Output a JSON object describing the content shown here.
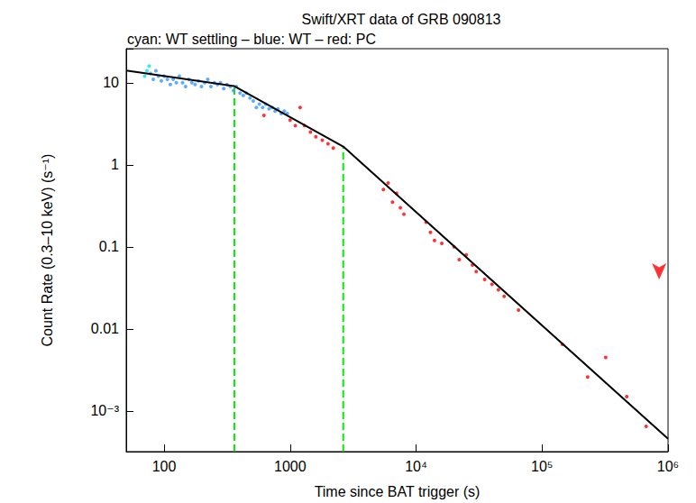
{
  "chart_data": {
    "type": "scatter",
    "title": "Swift/XRT data of GRB 090813",
    "subtitle": "cyan: WT settling – blue: WT – red: PC",
    "x_label": "Time since BAT trigger (s)",
    "y_label": "Count Rate (0.3–10 keV) (s⁻¹)",
    "log": true,
    "grid": false,
    "marker": "circle",
    "xlim": [
      50,
      1000000
    ],
    "xticks": [
      100,
      1000,
      {
        "value": 10000,
        "label": "10⁴"
      },
      {
        "value": 100000,
        "label": "10⁵"
      },
      {
        "value": 1000000,
        "label": "10⁶"
      }
    ],
    "ylim": [
      0.00032,
      26
    ],
    "yticks": [
      {
        "value": 0.001,
        "label": "10⁻³"
      },
      0.01,
      0.1,
      1,
      10
    ],
    "series": [
      {
        "name": "WT settling",
        "color": "#00e5ee",
        "x": [
          70,
          73,
          76
        ],
        "values": [
          12,
          14,
          16
        ]
      },
      {
        "name": "WT",
        "color": "#3399ff",
        "x": [
          78,
          82,
          86,
          90,
          95,
          100,
          106,
          112,
          118,
          125,
          132,
          140,
          148,
          157,
          166,
          176,
          187,
          198,
          210,
          222,
          235,
          250,
          265,
          280,
          297,
          315,
          335,
          355,
          375,
          400,
          425,
          450,
          480,
          510,
          540,
          570,
          605,
          640,
          680,
          720,
          760,
          800,
          850,
          900,
          950
        ],
        "values": [
          13,
          11,
          14,
          12,
          10.5,
          12,
          11,
          9.5,
          11,
          10,
          12,
          10,
          9,
          11,
          10,
          9.5,
          10.5,
          9,
          10,
          11,
          9,
          10,
          9.5,
          10,
          8.5,
          9.5,
          9,
          8,
          9,
          7.5,
          7,
          7.5,
          6.5,
          6,
          5,
          5.5,
          5,
          5.5,
          4.8,
          5,
          4.5,
          4.8,
          4.2,
          4.5,
          4.2
        ]
      },
      {
        "name": "PC",
        "color": "#ff0000",
        "x": [
          620,
          1000,
          1100,
          1200,
          1300,
          1450,
          1600,
          1800,
          2000,
          2200,
          5500,
          6000,
          6500,
          7000,
          7500,
          8000,
          12000,
          13000,
          14000,
          16000,
          20000,
          22000,
          25000,
          28000,
          30000,
          35000,
          40000,
          45000,
          50000,
          65000,
          145000,
          230000,
          320000,
          470000,
          670000
        ],
        "values": [
          4,
          3.5,
          3,
          5,
          3,
          2.5,
          2.2,
          2,
          1.8,
          1.6,
          0.5,
          0.6,
          0.35,
          0.45,
          0.3,
          0.25,
          0.2,
          0.15,
          0.12,
          0.11,
          0.1,
          0.07,
          0.08,
          0.06,
          0.05,
          0.04,
          0.035,
          0.03,
          0.025,
          0.017,
          0.0065,
          0.0026,
          0.0045,
          0.0015,
          0.00065
        ],
        "upper_limits": [
          [
            850000,
            0.04
          ]
        ]
      }
    ],
    "model": {
      "color": "#000000",
      "x": [
        50,
        361,
        2640,
        1000000
      ],
      "values": [
        14.1,
        9.1,
        1.67,
        0.00046
      ]
    },
    "break_markers": {
      "color": "#00ee00",
      "line_style": "dashed",
      "x": [
        361,
        2640
      ],
      "values": [
        9.1,
        1.67
      ]
    }
  }
}
